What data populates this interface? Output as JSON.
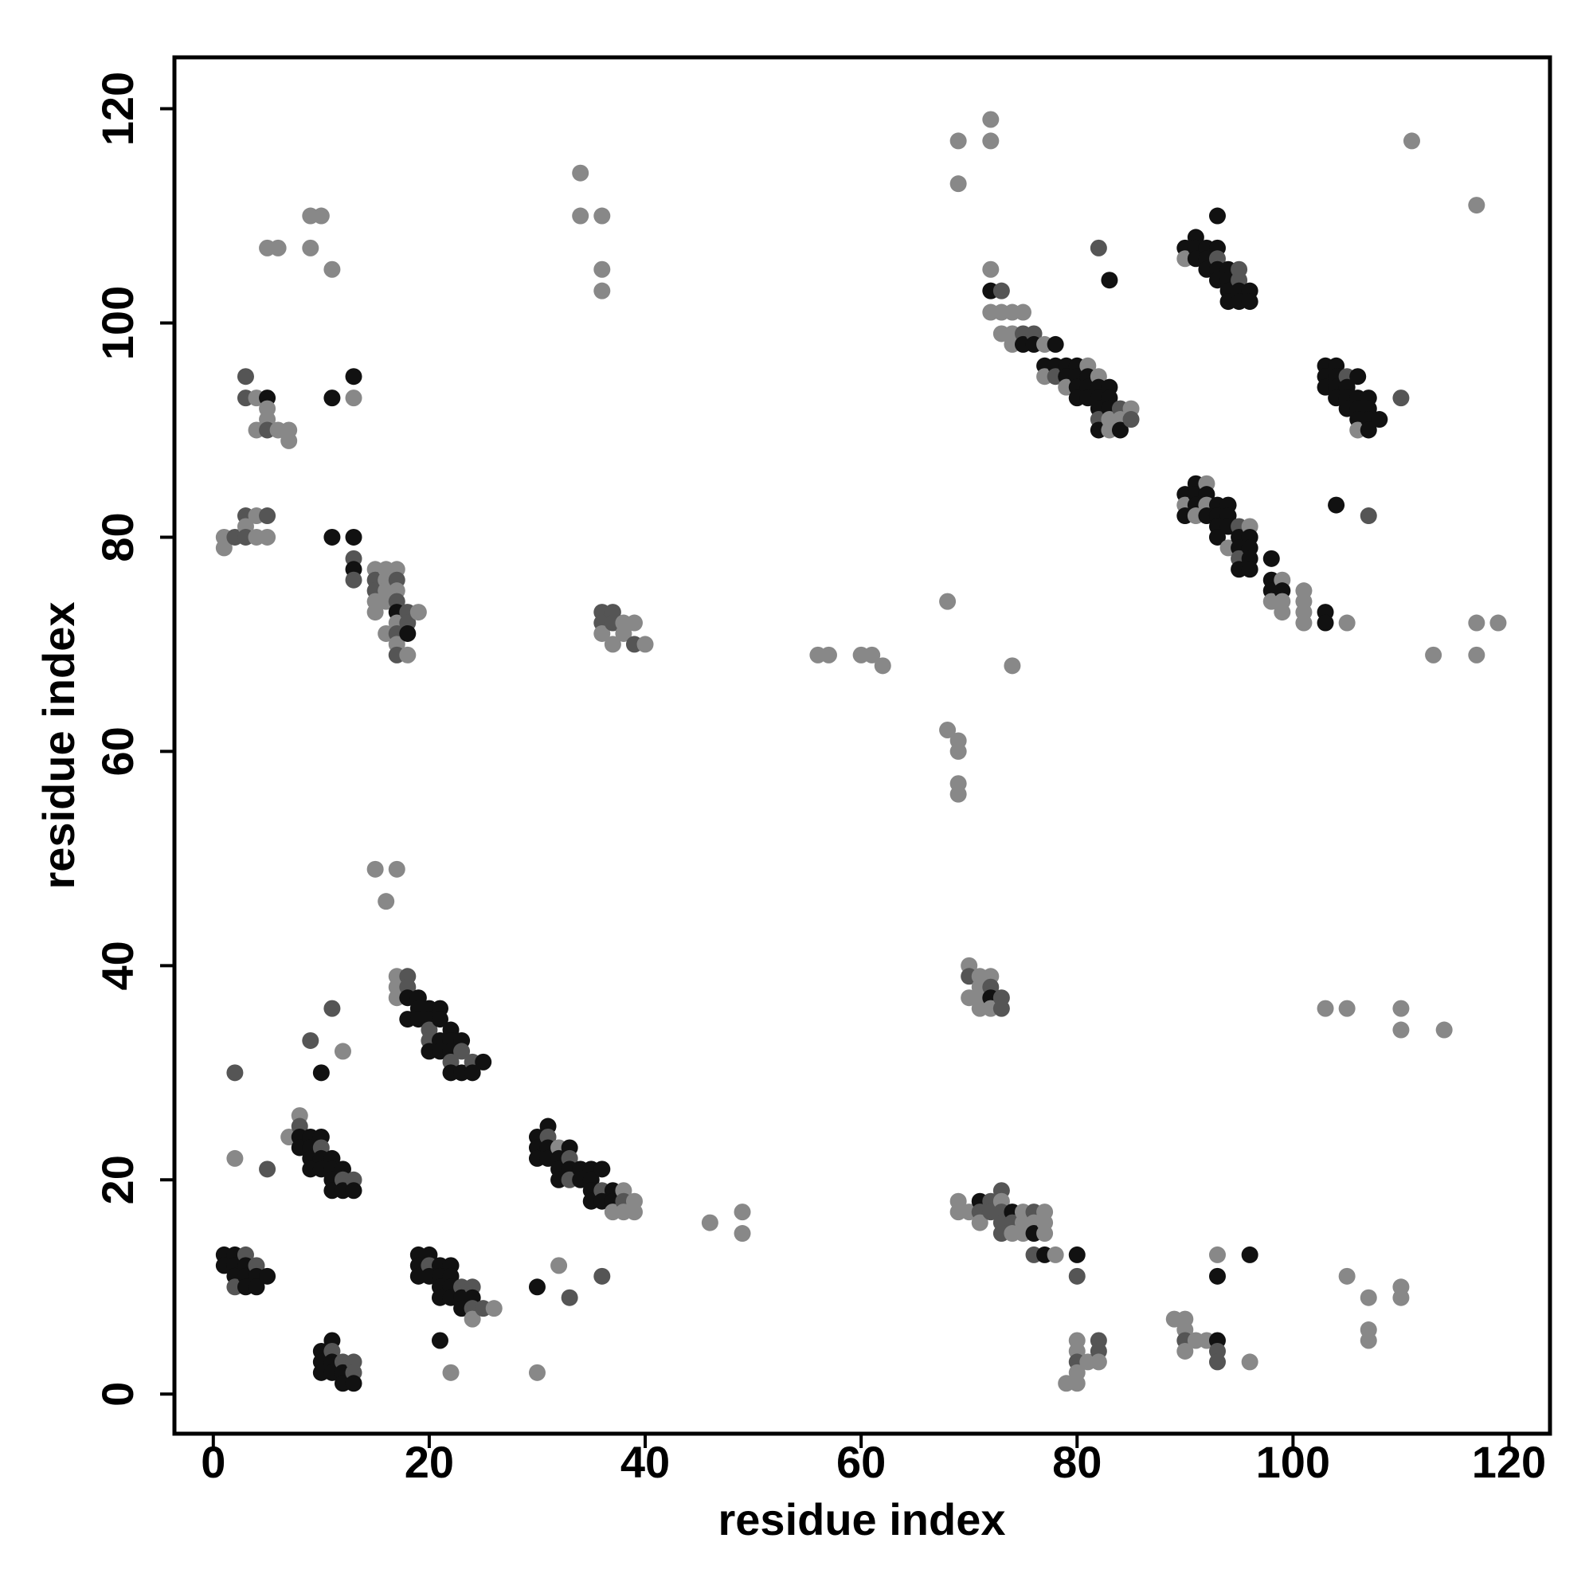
{
  "chart_data": {
    "type": "scatter",
    "xlabel": "residue index",
    "ylabel": "residue index",
    "xlim": [
      -3.6,
      123.8
    ],
    "ylim": [
      -3.7,
      124.8
    ],
    "xticks": [
      0,
      20,
      40,
      60,
      80,
      100,
      120
    ],
    "yticks": [
      0,
      20,
      40,
      60,
      80,
      100,
      120
    ],
    "grid": false,
    "x": [
      1,
      1,
      2,
      2,
      2,
      2,
      3,
      3,
      3,
      3,
      4,
      4,
      4,
      5,
      10,
      10,
      10,
      11,
      11,
      11,
      11,
      12,
      12,
      12,
      13,
      13,
      13,
      2,
      2,
      5,
      9,
      10,
      11,
      12,
      7,
      8,
      8,
      8,
      8,
      9,
      9,
      9,
      9,
      10,
      10,
      10,
      10,
      11,
      11,
      11,
      11,
      12,
      12,
      12,
      13,
      13,
      19,
      19,
      19,
      20,
      20,
      20,
      21,
      21,
      21,
      21,
      22,
      22,
      22,
      22,
      23,
      23,
      23,
      24,
      24,
      24,
      24,
      25,
      26,
      21,
      22,
      17,
      17,
      17,
      18,
      18,
      18,
      18,
      19,
      19,
      19,
      20,
      20,
      20,
      20,
      20,
      21,
      21,
      21,
      21,
      22,
      22,
      22,
      22,
      22,
      23,
      23,
      23,
      24,
      24,
      25,
      15,
      16,
      17,
      30,
      30,
      30,
      31,
      31,
      31,
      31,
      32,
      32,
      32,
      32,
      33,
      33,
      33,
      33,
      34,
      34,
      35,
      35,
      35,
      35,
      36,
      36,
      36,
      37,
      37,
      37,
      38,
      38,
      38,
      39,
      39,
      30,
      30,
      32,
      33,
      36,
      46,
      49,
      49,
      15,
      15,
      15,
      15,
      15,
      16,
      16,
      16,
      16,
      16,
      17,
      17,
      17,
      17,
      17,
      17,
      17,
      17,
      17,
      18,
      18,
      18,
      18,
      19,
      1,
      1,
      2,
      3,
      3,
      3,
      4,
      4,
      5,
      5,
      3,
      3,
      4,
      4,
      5,
      5,
      5,
      5,
      6,
      7,
      7,
      11,
      13,
      13,
      11,
      13,
      13,
      13,
      13,
      5,
      6,
      9,
      10,
      9,
      11,
      36,
      36,
      36,
      37,
      37,
      37,
      38,
      38,
      39,
      39,
      40,
      34,
      34,
      36,
      36,
      36,
      56,
      57,
      60,
      61,
      62,
      68,
      74,
      68,
      69,
      69,
      69,
      69,
      69,
      69,
      72,
      72,
      70,
      70,
      70,
      71,
      71,
      71,
      71,
      72,
      72,
      72,
      72,
      73,
      73,
      69,
      69,
      70,
      71,
      71,
      71,
      72,
      72,
      73,
      73,
      73,
      73,
      73,
      74,
      74,
      74,
      75,
      75,
      75,
      76,
      76,
      76,
      77,
      77,
      77,
      76,
      77,
      78,
      80,
      80,
      79,
      80,
      80,
      80,
      80,
      80,
      81,
      82,
      82,
      82,
      89,
      90,
      90,
      90,
      90,
      91,
      92,
      93,
      93,
      93,
      93,
      93,
      96,
      96,
      103,
      105,
      110,
      110,
      114,
      105,
      107,
      107,
      107,
      110,
      110,
      72,
      72,
      73,
      72,
      73,
      74,
      75,
      73,
      74,
      74,
      75,
      75,
      76,
      76,
      77,
      78,
      77,
      77,
      78,
      78,
      79,
      79,
      79,
      80,
      80,
      80,
      80,
      81,
      81,
      81,
      81,
      82,
      82,
      82,
      82,
      82,
      82,
      83,
      83,
      83,
      83,
      83,
      84,
      84,
      84,
      85,
      85,
      82,
      83,
      90,
      90,
      91,
      91,
      91,
      92,
      92,
      92,
      93,
      93,
      93,
      93,
      93,
      94,
      94,
      94,
      94,
      95,
      95,
      95,
      95,
      96,
      96,
      103,
      103,
      103,
      104,
      104,
      104,
      104,
      105,
      105,
      105,
      105,
      106,
      106,
      106,
      106,
      106,
      107,
      107,
      107,
      107,
      108,
      110,
      104,
      107,
      111,
      117,
      90,
      90,
      90,
      91,
      91,
      91,
      91,
      92,
      92,
      92,
      92,
      93,
      93,
      93,
      93,
      94,
      94,
      94,
      94,
      95,
      95,
      95,
      95,
      95,
      96,
      96,
      96,
      96,
      96,
      98,
      98,
      98,
      98,
      99,
      99,
      99,
      99,
      101,
      101,
      101,
      101,
      103,
      103,
      105,
      113,
      117,
      117,
      119
    ],
    "values": [
      13,
      12,
      13,
      12,
      11,
      10,
      13,
      12,
      11,
      10,
      12,
      11,
      10,
      11,
      4,
      3,
      2,
      5,
      4,
      3,
      2,
      3,
      2,
      1,
      3,
      2,
      1,
      22,
      30,
      21,
      33,
      30,
      36,
      32,
      24,
      26,
      25,
      24,
      23,
      24,
      23,
      22,
      21,
      24,
      23,
      22,
      21,
      22,
      21,
      20,
      19,
      21,
      20,
      19,
      20,
      19,
      13,
      12,
      11,
      13,
      12,
      11,
      12,
      11,
      10,
      9,
      12,
      11,
      10,
      9,
      10,
      9,
      8,
      10,
      9,
      8,
      7,
      8,
      8,
      5,
      2,
      39,
      38,
      37,
      39,
      38,
      37,
      35,
      37,
      36,
      35,
      36,
      35,
      34,
      33,
      32,
      36,
      35,
      33,
      32,
      34,
      33,
      32,
      31,
      30,
      33,
      32,
      30,
      31,
      30,
      31,
      49,
      46,
      49,
      24,
      23,
      22,
      25,
      24,
      23,
      22,
      23,
      22,
      21,
      20,
      23,
      22,
      21,
      20,
      21,
      20,
      21,
      20,
      19,
      18,
      21,
      19,
      18,
      19,
      18,
      17,
      19,
      18,
      17,
      18,
      17,
      10,
      2,
      12,
      9,
      11,
      16,
      17,
      15,
      77,
      76,
      75,
      74,
      73,
      77,
      76,
      75,
      74,
      71,
      77,
      76,
      75,
      74,
      73,
      72,
      71,
      70,
      69,
      73,
      72,
      71,
      69,
      73,
      80,
      79,
      80,
      82,
      81,
      80,
      82,
      80,
      82,
      80,
      95,
      93,
      93,
      90,
      93,
      92,
      91,
      90,
      90,
      90,
      89,
      93,
      95,
      93,
      80,
      80,
      78,
      77,
      76,
      107,
      107,
      110,
      110,
      107,
      105,
      73,
      72,
      71,
      73,
      72,
      70,
      72,
      71,
      72,
      70,
      70,
      114,
      110,
      110,
      105,
      103,
      69,
      69,
      69,
      69,
      68,
      74,
      68,
      62,
      61,
      60,
      57,
      56,
      117,
      113,
      119,
      117,
      40,
      39,
      37,
      39,
      38,
      37,
      36,
      39,
      38,
      37,
      36,
      37,
      36,
      18,
      17,
      17,
      18,
      17,
      16,
      18,
      17,
      19,
      18,
      17,
      16,
      15,
      17,
      16,
      15,
      17,
      16,
      15,
      17,
      16,
      15,
      17,
      16,
      15,
      13,
      13,
      13,
      13,
      11,
      1,
      5,
      4,
      3,
      2,
      1,
      3,
      5,
      4,
      3,
      7,
      7,
      6,
      5,
      4,
      5,
      5,
      5,
      4,
      3,
      13,
      11,
      13,
      3,
      36,
      36,
      36,
      34,
      34,
      11,
      9,
      6,
      5,
      10,
      9,
      105,
      103,
      103,
      101,
      101,
      101,
      101,
      99,
      99,
      98,
      99,
      98,
      99,
      98,
      98,
      98,
      96,
      95,
      96,
      95,
      96,
      95,
      94,
      96,
      95,
      94,
      93,
      96,
      95,
      94,
      93,
      95,
      94,
      93,
      92,
      91,
      90,
      94,
      93,
      92,
      91,
      90,
      92,
      91,
      90,
      92,
      91,
      107,
      104,
      107,
      106,
      108,
      107,
      106,
      107,
      106,
      105,
      110,
      107,
      106,
      105,
      104,
      105,
      104,
      103,
      102,
      105,
      104,
      103,
      102,
      103,
      102,
      96,
      95,
      94,
      96,
      95,
      94,
      93,
      95,
      94,
      93,
      92,
      95,
      93,
      92,
      91,
      90,
      93,
      92,
      91,
      90,
      91,
      93,
      83,
      82,
      117,
      111,
      84,
      83,
      82,
      85,
      84,
      83,
      82,
      85,
      84,
      83,
      82,
      83,
      82,
      81,
      80,
      83,
      82,
      81,
      79,
      81,
      80,
      79,
      78,
      77,
      81,
      80,
      79,
      78,
      77,
      78,
      76,
      75,
      74,
      76,
      75,
      74,
      73,
      75,
      74,
      73,
      72,
      73,
      72,
      72,
      69,
      72,
      69,
      72
    ],
    "colors": [
      "#111",
      "#111",
      "#111",
      "#111",
      "#111",
      "#555",
      "#555",
      "#111",
      "#111",
      "#111",
      "#555",
      "#111",
      "#111",
      "#111",
      "#111",
      "#111",
      "#111",
      "#111",
      "#555",
      "#111",
      "#111",
      "#555",
      "#111",
      "#111",
      "#555",
      "#555",
      "#111",
      "#888",
      "#555",
      "#555",
      "#555",
      "#111",
      "#555",
      "#888",
      "#888",
      "#888",
      "#555",
      "#111",
      "#111",
      "#111",
      "#111",
      "#111",
      "#111",
      "#111",
      "#555",
      "#111",
      "#111",
      "#111",
      "#111",
      "#111",
      "#111",
      "#111",
      "#555",
      "#111",
      "#555",
      "#111",
      "#111",
      "#111",
      "#111",
      "#111",
      "#555",
      "#111",
      "#111",
      "#111",
      "#111",
      "#111",
      "#111",
      "#111",
      "#111",
      "#111",
      "#555",
      "#111",
      "#111",
      "#555",
      "#111",
      "#555",
      "#888",
      "#555",
      "#888",
      "#111",
      "#888",
      "#888",
      "#888",
      "#888",
      "#555",
      "#555",
      "#111",
      "#111",
      "#111",
      "#111",
      "#111",
      "#111",
      "#111",
      "#555",
      "#555",
      "#111",
      "#111",
      "#111",
      "#111",
      "#111",
      "#111",
      "#111",
      "#111",
      "#555",
      "#111",
      "#111",
      "#555",
      "#111",
      "#555",
      "#111",
      "#111",
      "#888",
      "#888",
      "#888",
      "#111",
      "#111",
      "#111",
      "#111",
      "#555",
      "#111",
      "#111",
      "#888",
      "#111",
      "#111",
      "#111",
      "#111",
      "#555",
      "#111",
      "#555",
      "#111",
      "#111",
      "#111",
      "#111",
      "#111",
      "#111",
      "#111",
      "#555",
      "#111",
      "#111",
      "#111",
      "#888",
      "#888",
      "#555",
      "#888",
      "#888",
      "#888",
      "#111",
      "#888",
      "#888",
      "#555",
      "#555",
      "#888",
      "#888",
      "#888",
      "#888",
      "#555",
      "#555",
      "#888",
      "#888",
      "#888",
      "#888",
      "#888",
      "#888",
      "#888",
      "#888",
      "#555",
      "#888",
      "#555",
      "#111",
      "#888",
      "#555",
      "#888",
      "#555",
      "#555",
      "#555",
      "#111",
      "#888",
      "#888",
      "#888",
      "#888",
      "#555",
      "#555",
      "#888",
      "#555",
      "#888",
      "#888",
      "#555",
      "#888",
      "#555",
      "#555",
      "#888",
      "#888",
      "#111",
      "#888",
      "#888",
      "#555",
      "#888",
      "#888",
      "#888",
      "#111",
      "#111",
      "#888",
      "#111",
      "#111",
      "#555",
      "#111",
      "#555",
      "#888",
      "#888",
      "#888",
      "#888",
      "#888",
      "#888",
      "#555",
      "#555",
      "#888",
      "#555",
      "#555",
      "#888",
      "#888",
      "#888",
      "#888",
      "#555",
      "#888",
      "#888",
      "#888",
      "#888",
      "#888",
      "#888",
      "#888",
      "#888",
      "#888",
      "#888",
      "#888",
      "#888",
      "#888",
      "#888",
      "#888",
      "#888",
      "#888",
      "#888",
      "#888",
      "#888",
      "#888",
      "#888",
      "#888",
      "#555",
      "#888",
      "#888",
      "#888",
      "#888",
      "#888",
      "#888",
      "#555",
      "#111",
      "#888",
      "#555",
      "#555",
      "#888",
      "#888",
      "#888",
      "#111",
      "#555",
      "#888",
      "#555",
      "#555",
      "#555",
      "#888",
      "#555",
      "#555",
      "#555",
      "#111",
      "#555",
      "#888",
      "#888",
      "#888",
      "#888",
      "#555",
      "#888",
      "#111",
      "#888",
      "#888",
      "#888",
      "#555",
      "#111",
      "#888",
      "#111",
      "#555",
      "#888",
      "#888",
      "#888",
      "#555",
      "#888",
      "#888",
      "#888",
      "#555",
      "#555",
      "#888",
      "#888",
      "#888",
      "#888",
      "#555",
      "#888",
      "#888",
      "#888",
      "#111",
      "#555",
      "#555",
      "#888",
      "#111",
      "#111",
      "#888",
      "#888",
      "#888",
      "#888",
      "#888",
      "#888",
      "#888",
      "#888",
      "#888",
      "#888",
      "#888",
      "#888",
      "#888",
      "#111",
      "#555",
      "#888",
      "#888",
      "#888",
      "#888",
      "#888",
      "#888",
      "#888",
      "#555",
      "#111",
      "#555",
      "#111",
      "#888",
      "#111",
      "#111",
      "#888",
      "#111",
      "#555",
      "#111",
      "#111",
      "#888",
      "#111",
      "#111",
      "#111",
      "#111",
      "#888",
      "#111",
      "#111",
      "#111",
      "#888",
      "#111",
      "#111",
      "#111",
      "#555",
      "#111",
      "#111",
      "#111",
      "#111",
      "#888",
      "#888",
      "#555",
      "#888",
      "#111",
      "#888",
      "#555",
      "#555",
      "#111",
      "#111",
      "#888",
      "#111",
      "#111",
      "#111",
      "#111",
      "#111",
      "#111",
      "#111",
      "#111",
      "#555",
      "#111",
      "#111",
      "#111",
      "#111",
      "#111",
      "#111",
      "#555",
      "#555",
      "#111",
      "#111",
      "#111",
      "#111",
      "#111",
      "#111",
      "#111",
      "#111",
      "#111",
      "#111",
      "#111",
      "#555",
      "#111",
      "#111",
      "#111",
      "#111",
      "#111",
      "#111",
      "#111",
      "#888",
      "#111",
      "#111",
      "#111",
      "#111",
      "#111",
      "#555",
      "#111",
      "#555",
      "#888",
      "#888",
      "#111",
      "#888",
      "#111",
      "#111",
      "#111",
      "#111",
      "#888",
      "#888",
      "#111",
      "#888",
      "#111",
      "#111",
      "#111",
      "#111",
      "#111",
      "#111",
      "#111",
      "#111",
      "#888",
      "#555",
      "#111",
      "#111",
      "#555",
      "#111",
      "#888",
      "#111",
      "#111",
      "#111",
      "#111",
      "#111",
      "#111",
      "#111",
      "#888",
      "#888",
      "#111",
      "#888",
      "#888",
      "#888",
      "#888",
      "#888",
      "#888",
      "#111",
      "#111",
      "#888",
      "#888",
      "#888",
      "#888",
      "#888"
    ]
  }
}
